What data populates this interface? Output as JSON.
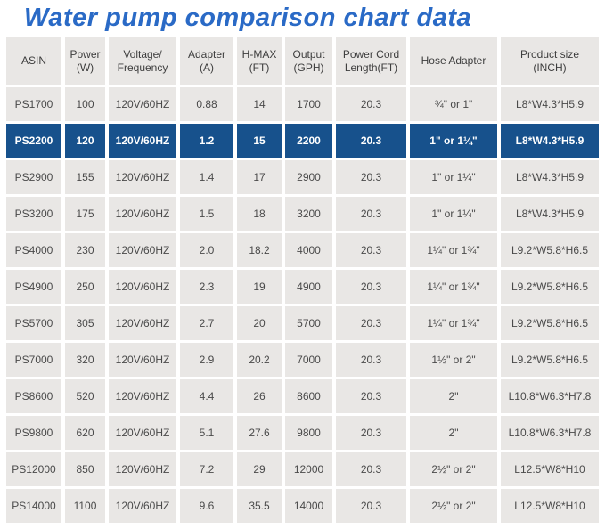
{
  "title": "Water pump comparison chart data",
  "colors": {
    "title_blue": "#2a6ac6",
    "highlight_blue": "#17518c",
    "cell_gray": "#e9e7e5",
    "text_dark": "#4a4a4a",
    "highlight_text": "#ffffff"
  },
  "chart_data": {
    "type": "table",
    "title": "Water pump comparison chart data",
    "columns": [
      {
        "key": "asin",
        "label": "ASIN"
      },
      {
        "key": "power",
        "label": "Power\n(W)"
      },
      {
        "key": "voltage",
        "label": "Voltage/\nFrequency"
      },
      {
        "key": "adapter",
        "label": "Adapter\n(A)"
      },
      {
        "key": "hmax",
        "label": "H-MAX\n(FT)"
      },
      {
        "key": "output",
        "label": "Output\n(GPH)"
      },
      {
        "key": "cord",
        "label": "Power Cord\nLength(FT)"
      },
      {
        "key": "hose",
        "label": "Hose Adapter"
      },
      {
        "key": "size",
        "label": "Product size\n(INCH)"
      }
    ],
    "highlighted_row_index": 1,
    "highlighted_row_asin": "PS2200",
    "rows": [
      [
        "PS1700",
        "100",
        "120V/60HZ",
        "0.88",
        "14",
        "1700",
        "20.3",
        "¾\" or 1\"",
        "L8*W4.3*H5.9"
      ],
      [
        "PS2200",
        "120",
        "120V/60HZ",
        "1.2",
        "15",
        "2200",
        "20.3",
        "1\" or 1¼\"",
        "L8*W4.3*H5.9"
      ],
      [
        "PS2900",
        "155",
        "120V/60HZ",
        "1.4",
        "17",
        "2900",
        "20.3",
        "1\" or 1¼\"",
        "L8*W4.3*H5.9"
      ],
      [
        "PS3200",
        "175",
        "120V/60HZ",
        "1.5",
        "18",
        "3200",
        "20.3",
        "1\" or 1¼\"",
        "L8*W4.3*H5.9"
      ],
      [
        "PS4000",
        "230",
        "120V/60HZ",
        "2.0",
        "18.2",
        "4000",
        "20.3",
        "1¼\" or 1¾\"",
        "L9.2*W5.8*H6.5"
      ],
      [
        "PS4900",
        "250",
        "120V/60HZ",
        "2.3",
        "19",
        "4900",
        "20.3",
        "1¼\" or 1¾\"",
        "L9.2*W5.8*H6.5"
      ],
      [
        "PS5700",
        "305",
        "120V/60HZ",
        "2.7",
        "20",
        "5700",
        "20.3",
        "1¼\" or 1¾\"",
        "L9.2*W5.8*H6.5"
      ],
      [
        "PS7000",
        "320",
        "120V/60HZ",
        "2.9",
        "20.2",
        "7000",
        "20.3",
        "1½\" or 2\"",
        "L9.2*W5.8*H6.5"
      ],
      [
        "PS8600",
        "520",
        "120V/60HZ",
        "4.4",
        "26",
        "8600",
        "20.3",
        "2\"",
        "L10.8*W6.3*H7.8"
      ],
      [
        "PS9800",
        "620",
        "120V/60HZ",
        "5.1",
        "27.6",
        "9800",
        "20.3",
        "2\"",
        "L10.8*W6.3*H7.8"
      ],
      [
        "PS12000",
        "850",
        "120V/60HZ",
        "7.2",
        "29",
        "12000",
        "20.3",
        "2½\" or 2\"",
        "L12.5*W8*H10"
      ],
      [
        "PS14000",
        "1100",
        "120V/60HZ",
        "9.6",
        "35.5",
        "14000",
        "20.3",
        "2½\" or 2\"",
        "L12.5*W8*H10"
      ]
    ]
  }
}
